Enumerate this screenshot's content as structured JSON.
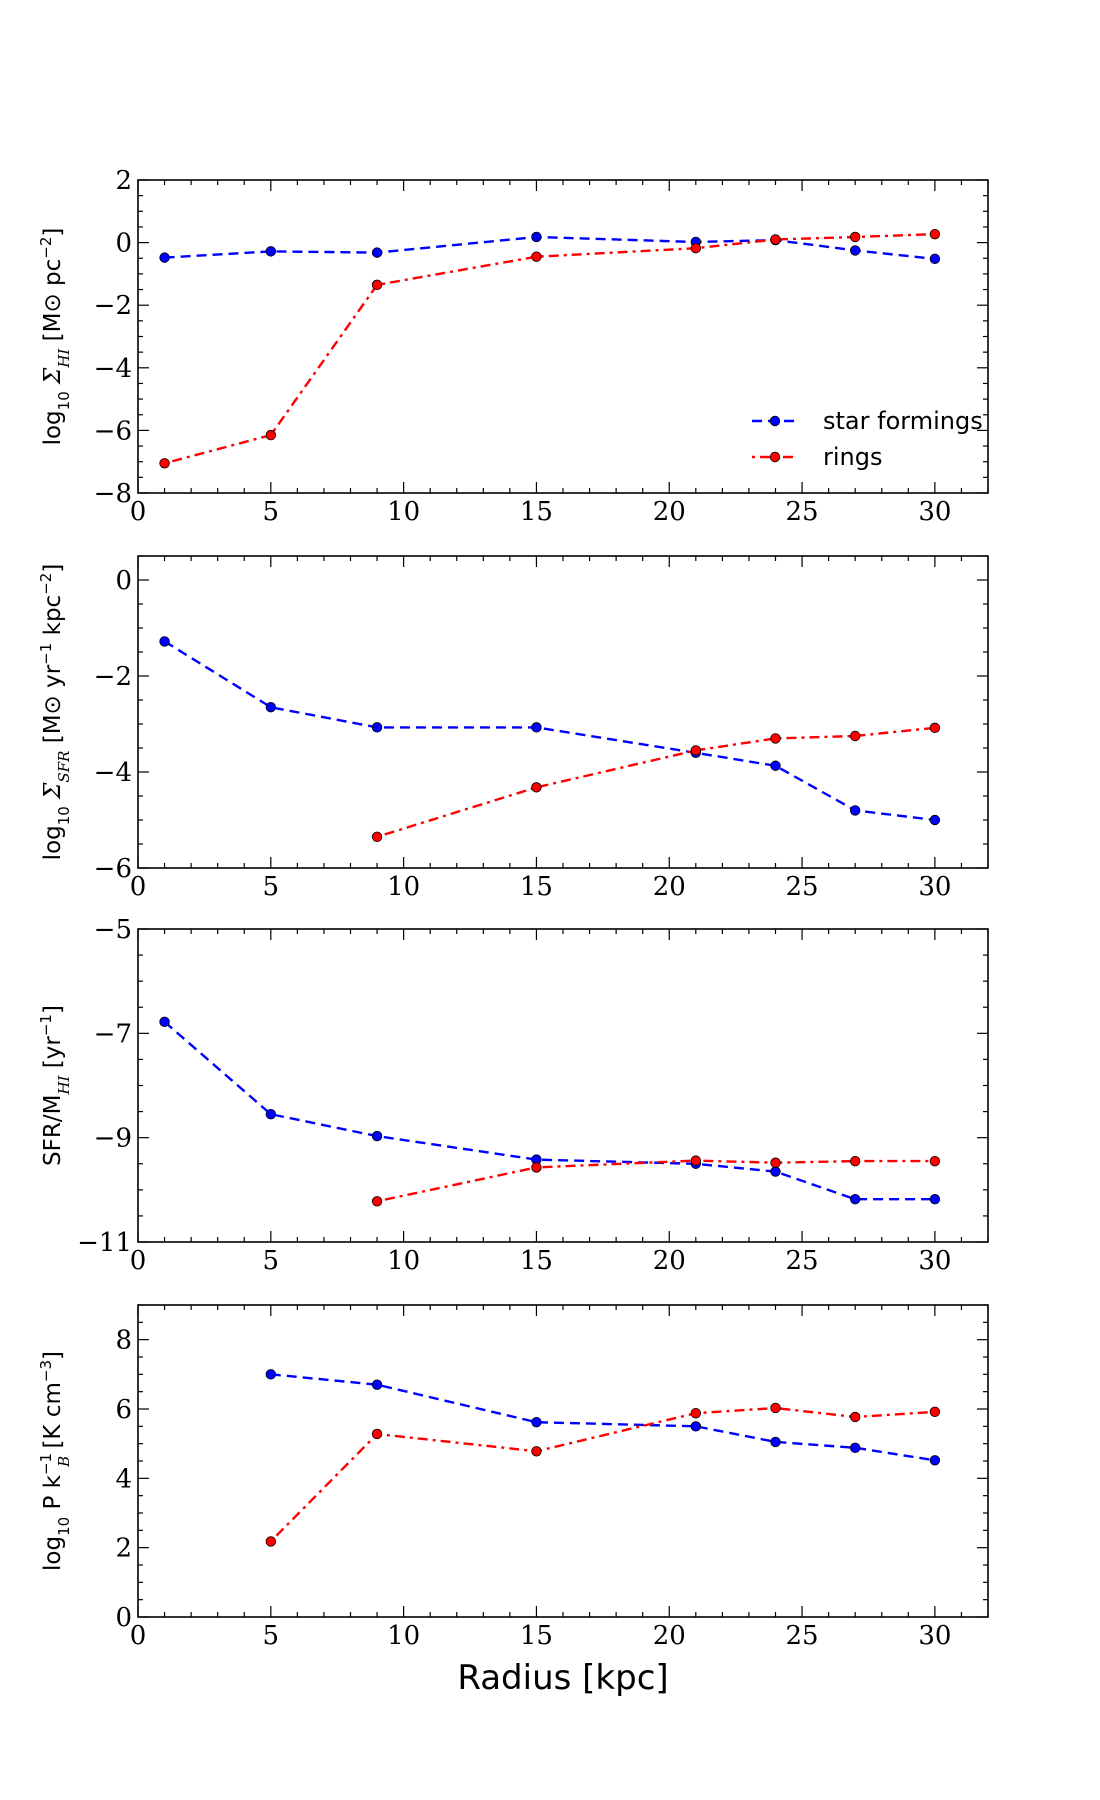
{
  "chart_data": [
    {
      "type": "line",
      "ylabel": "log₁₀ Σ_HI [M⊙ pc⁻²]",
      "ylabel_parts": {
        "pre": "log",
        "sub": "10",
        "sym": " Σ",
        "symsub": "HI",
        "post": " [M⊙ pc",
        "sup": "−2",
        "end": "]"
      },
      "xlim": [
        0,
        32
      ],
      "ylim": [
        -8,
        2
      ],
      "xticks": [
        0,
        5,
        10,
        15,
        20,
        25,
        30
      ],
      "yticks": [
        -8,
        -6,
        -4,
        -2,
        0,
        2
      ],
      "ytick_labels": [
        "−8",
        "−6",
        "−4",
        "−2",
        "0",
        "2"
      ],
      "xlabel": "",
      "legend": {
        "position": "lower-right",
        "entries": [
          "star formings",
          "rings"
        ]
      },
      "series": [
        {
          "name": "star formings",
          "color": "#0000ff",
          "style": "dashed",
          "x": [
            1,
            5,
            9,
            15,
            21,
            24,
            27,
            30
          ],
          "y": [
            -0.48,
            -0.28,
            -0.32,
            0.18,
            0.02,
            0.08,
            -0.25,
            -0.52
          ]
        },
        {
          "name": "rings",
          "color": "#ff0000",
          "style": "dashdot",
          "x": [
            1,
            5,
            9,
            15,
            21,
            24,
            27,
            30
          ],
          "y": [
            -7.05,
            -6.15,
            -1.35,
            -0.45,
            -0.18,
            0.1,
            0.18,
            0.27
          ]
        }
      ]
    },
    {
      "type": "line",
      "ylabel": "log₁₀ Σ_SFR [M⊙ yr⁻¹ kpc⁻²]",
      "ylabel_parts": {
        "pre": "log",
        "sub": "10",
        "sym": " Σ",
        "symsub": "SFR",
        "post": " [M⊙ yr",
        "sup": "−1",
        "mid": " kpc",
        "sup2": "−2",
        "end": "]"
      },
      "xlim": [
        0,
        32
      ],
      "ylim": [
        -6,
        0.5
      ],
      "xticks": [
        0,
        5,
        10,
        15,
        20,
        25,
        30
      ],
      "yticks": [
        -6,
        -4,
        -2,
        0
      ],
      "ytick_labels": [
        "−6",
        "−4",
        "−2",
        "0"
      ],
      "xlabel": "",
      "series": [
        {
          "name": "star formings",
          "color": "#0000ff",
          "style": "dashed",
          "x": [
            1,
            5,
            9,
            15,
            21,
            24,
            27,
            30
          ],
          "y": [
            -1.28,
            -2.65,
            -3.07,
            -3.07,
            -3.6,
            -3.87,
            -4.8,
            -5.0
          ]
        },
        {
          "name": "rings",
          "color": "#ff0000",
          "style": "dashdot",
          "x": [
            9,
            15,
            21,
            24,
            27,
            30
          ],
          "y": [
            -5.35,
            -4.32,
            -3.55,
            -3.3,
            -3.25,
            -3.08
          ]
        }
      ]
    },
    {
      "type": "line",
      "ylabel": "SFR/M_HI [yr⁻¹]",
      "ylabel_parts": {
        "pre": "SFR/M",
        "sub": "HI",
        "post": " [yr",
        "sup": "−1",
        "end": "]"
      },
      "xlim": [
        0,
        32
      ],
      "ylim": [
        -11,
        -5
      ],
      "xticks": [
        0,
        5,
        10,
        15,
        20,
        25,
        30
      ],
      "yticks": [
        -11,
        -9,
        -7,
        -5
      ],
      "ytick_labels": [
        "−11",
        "−9",
        "−7",
        "−5"
      ],
      "xlabel": "",
      "series": [
        {
          "name": "star formings",
          "color": "#0000ff",
          "style": "dashed",
          "x": [
            1,
            5,
            9,
            15,
            21,
            24,
            27,
            30
          ],
          "y": [
            -6.78,
            -8.55,
            -8.97,
            -9.42,
            -9.5,
            -9.65,
            -10.18,
            -10.18
          ]
        },
        {
          "name": "rings",
          "color": "#ff0000",
          "style": "dashdot",
          "x": [
            9,
            15,
            21,
            24,
            27,
            30
          ],
          "y": [
            -10.22,
            -9.57,
            -9.44,
            -9.48,
            -9.45,
            -9.45
          ]
        }
      ]
    },
    {
      "type": "line",
      "ylabel": "log₁₀ P k_B⁻¹ [K cm⁻³]",
      "ylabel_parts": {
        "pre": "log",
        "sub": "10",
        "post": " P k",
        "sup": "−1",
        "subB": "B",
        "mid": " [K cm",
        "sup2": "−3",
        "end": "]"
      },
      "xlim": [
        0,
        32
      ],
      "ylim": [
        0,
        9
      ],
      "xticks": [
        0,
        5,
        10,
        15,
        20,
        25,
        30
      ],
      "yticks": [
        0,
        2,
        4,
        6,
        8
      ],
      "ytick_labels": [
        "0",
        "2",
        "4",
        "6",
        "8"
      ],
      "xlabel": "Radius [kpc]",
      "series": [
        {
          "name": "star formings",
          "color": "#0000ff",
          "style": "dashed",
          "x": [
            5,
            9,
            15,
            21,
            24,
            27,
            30
          ],
          "y": [
            7.0,
            6.7,
            5.62,
            5.5,
            5.05,
            4.88,
            4.52
          ]
        },
        {
          "name": "rings",
          "color": "#ff0000",
          "style": "dashdot",
          "x": [
            5,
            9,
            15,
            21,
            24,
            27,
            30
          ],
          "y": [
            2.18,
            5.28,
            4.78,
            5.88,
            6.03,
            5.77,
            5.92
          ]
        }
      ]
    }
  ]
}
